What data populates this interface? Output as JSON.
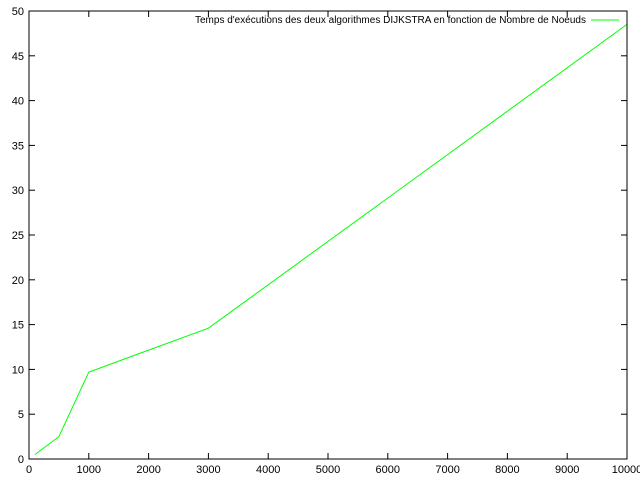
{
  "chart_data": {
    "type": "line",
    "title": "",
    "xlabel": "",
    "ylabel": "",
    "xlim": [
      0,
      10000
    ],
    "ylim": [
      0,
      50
    ],
    "xticks": [
      0,
      1000,
      2000,
      3000,
      4000,
      5000,
      6000,
      7000,
      8000,
      9000,
      10000
    ],
    "yticks": [
      0,
      5,
      10,
      15,
      20,
      25,
      30,
      35,
      40,
      45,
      50
    ],
    "grid": false,
    "legend_position": "top-right",
    "series": [
      {
        "name": "Temps d'exécutions des deux algorithmes  DIJKSTRA en fonction de Nombre de Noeuds",
        "color": "#00ff00",
        "x": [
          100,
          500,
          1000,
          3000,
          10000
        ],
        "y": [
          0.5,
          2.5,
          9.7,
          14.6,
          48.5
        ]
      }
    ]
  }
}
